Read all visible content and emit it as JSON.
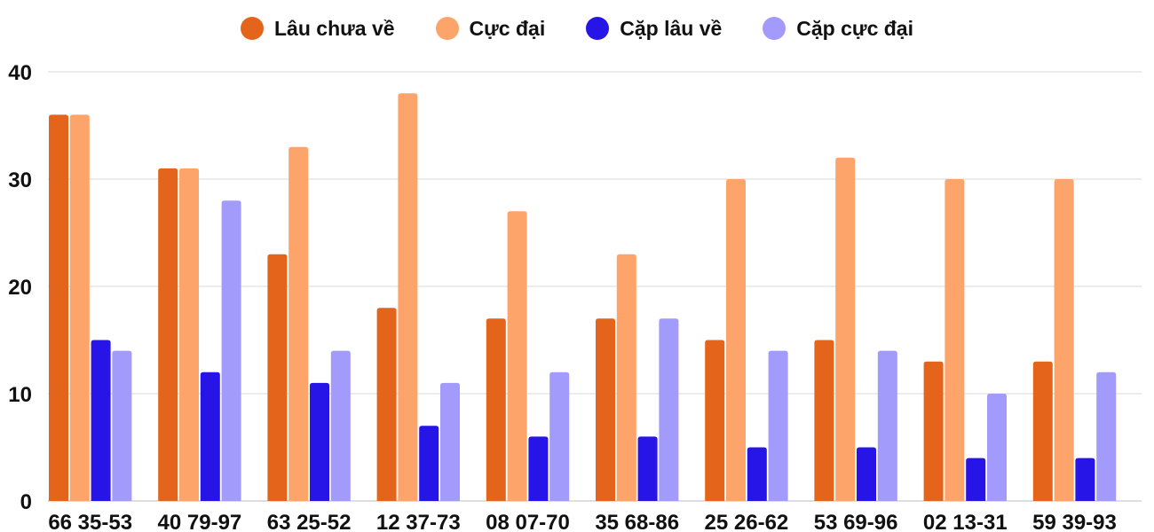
{
  "chart_data": {
    "type": "bar",
    "title": "",
    "xlabel": "",
    "ylabel": "",
    "ylim": [
      0,
      40
    ],
    "yticks": [
      0,
      10,
      20,
      30,
      40
    ],
    "grid": true,
    "legend_position": "top-center",
    "categories": [
      "66 35-53",
      "40 79-97",
      "63 25-52",
      "12 37-73",
      "08 07-70",
      "35 68-86",
      "25 26-62",
      "53 69-96",
      "02 13-31",
      "59 39-93"
    ],
    "series": [
      {
        "name": "Lâu chưa về",
        "color": "#e3641a",
        "values": [
          36,
          31,
          23,
          18,
          17,
          17,
          15,
          15,
          13,
          13
        ]
      },
      {
        "name": "Cực đại",
        "color": "#fda46a",
        "values": [
          36,
          31,
          33,
          38,
          27,
          23,
          30,
          32,
          30,
          30
        ]
      },
      {
        "name": "Cặp lâu về",
        "color": "#2714e6",
        "values": [
          15,
          12,
          11,
          7,
          6,
          6,
          5,
          5,
          4,
          4
        ]
      },
      {
        "name": "Cặp cực đại",
        "color": "#a29bfc",
        "values": [
          14,
          28,
          14,
          11,
          12,
          17,
          14,
          14,
          10,
          12
        ]
      }
    ]
  }
}
